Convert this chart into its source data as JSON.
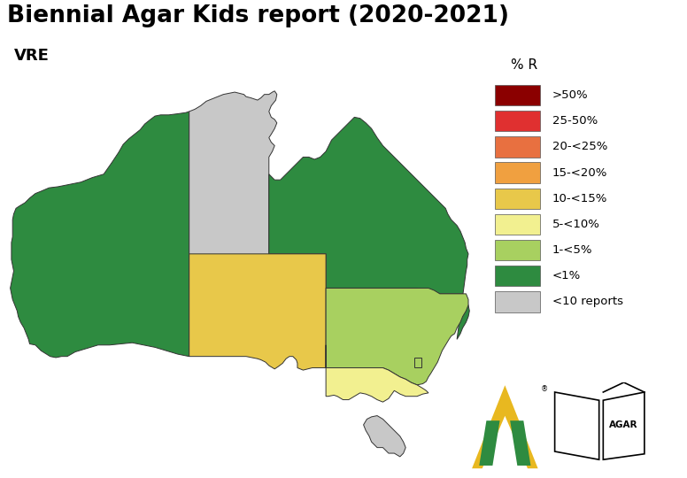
{
  "title": "Biennial Agar Kids report (2020-2021)",
  "subtitle": "VRE",
  "legend_title": "% R",
  "legend_labels": [
    ">50%",
    "25-50%",
    "20-<25%",
    "15-<20%",
    "10-<15%",
    "5-<10%",
    "1-<5%",
    "<1%",
    "<10 reports"
  ],
  "legend_colors": [
    "#8B0000",
    "#E03030",
    "#E87040",
    "#F0A040",
    "#E8C84A",
    "#F2F090",
    "#A8D060",
    "#2E8B40",
    "#C8C8C8"
  ],
  "state_colors": {
    "WA": "#2E8B40",
    "NT": "#C8C8C8",
    "QLD": "#2E8B40",
    "SA": "#E8C84A",
    "NSW": "#A8D060",
    "VIC": "#F2F090",
    "TAS": "#C8C8C8",
    "ACT": "#A8D060"
  },
  "background_color": "#FFFFFF",
  "map_xlim": [
    113.0,
    154.0
  ],
  "map_ylim": [
    -44.0,
    -10.0
  ]
}
